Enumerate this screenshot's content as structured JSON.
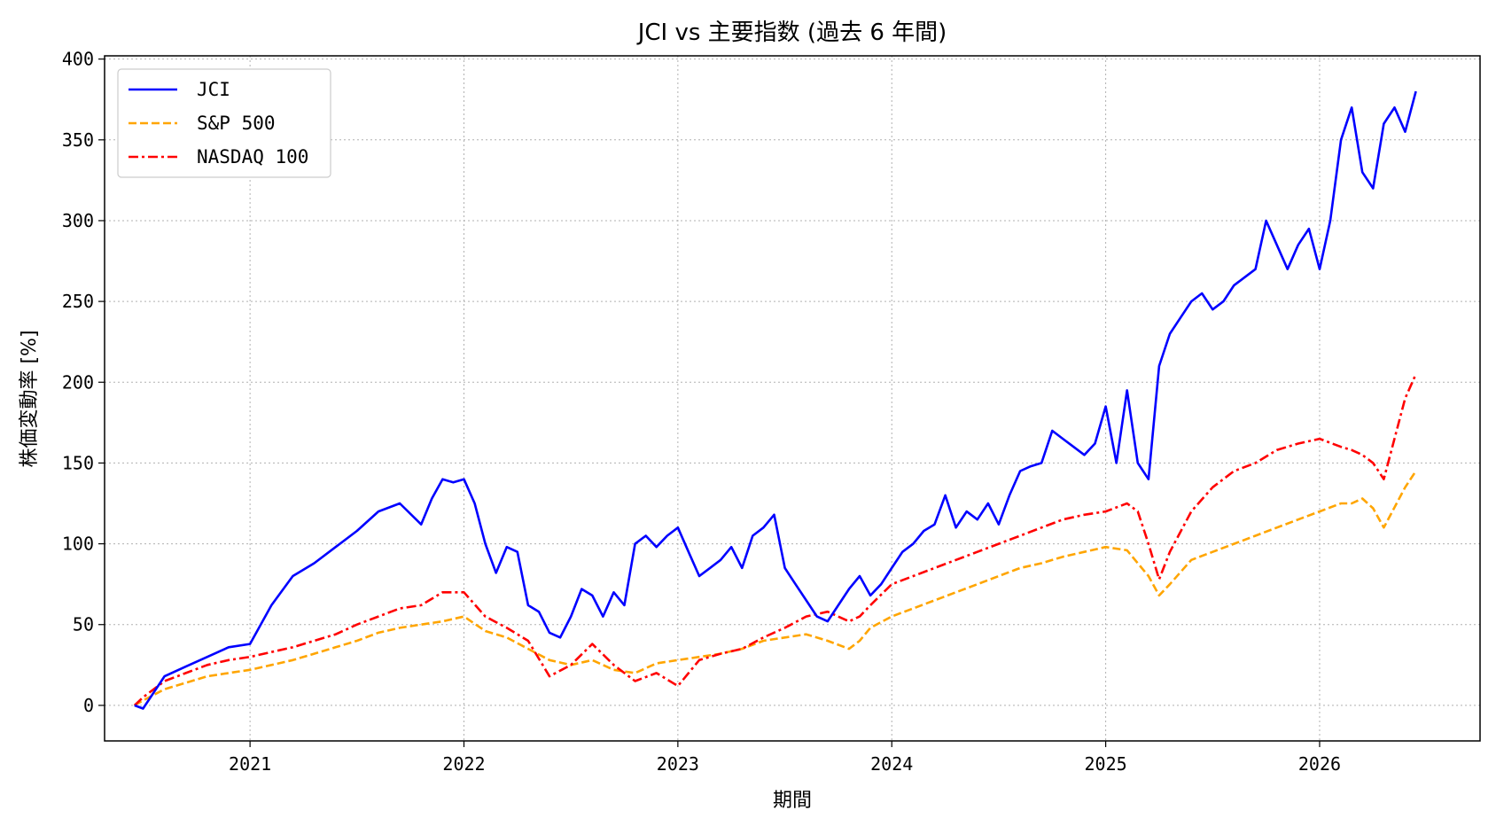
{
  "chart_data": {
    "type": "line",
    "title": "JCI vs 主要指数 (過去 6 年間)",
    "xlabel": "期間",
    "ylabel": "株価変動率 [%]",
    "xlim": [
      2020.32,
      2026.75
    ],
    "ylim": [
      -22,
      402
    ],
    "x_ticks": [
      2021,
      2022,
      2023,
      2024,
      2025,
      2026
    ],
    "x_tick_labels": [
      "2021",
      "2022",
      "2023",
      "2024",
      "2025",
      "2026"
    ],
    "y_ticks": [
      0,
      50,
      100,
      150,
      200,
      250,
      300,
      350,
      400
    ],
    "y_tick_labels": [
      "0",
      "50",
      "100",
      "150",
      "200",
      "250",
      "300",
      "350",
      "400"
    ],
    "grid": true,
    "legend_position": "top-left",
    "series": [
      {
        "name": "JCI",
        "color": "#0000ff",
        "style": "solid",
        "x": [
          2020.46,
          2020.5,
          2020.55,
          2020.6,
          2020.7,
          2020.8,
          2020.9,
          2021.0,
          2021.05,
          2021.1,
          2021.2,
          2021.3,
          2021.4,
          2021.5,
          2021.6,
          2021.7,
          2021.8,
          2021.85,
          2021.9,
          2021.95,
          2022.0,
          2022.05,
          2022.1,
          2022.15,
          2022.2,
          2022.25,
          2022.3,
          2022.35,
          2022.4,
          2022.45,
          2022.5,
          2022.55,
          2022.6,
          2022.65,
          2022.7,
          2022.75,
          2022.8,
          2022.85,
          2022.9,
          2022.95,
          2023.0,
          2023.05,
          2023.1,
          2023.15,
          2023.2,
          2023.25,
          2023.3,
          2023.35,
          2023.4,
          2023.45,
          2023.5,
          2023.55,
          2023.6,
          2023.65,
          2023.7,
          2023.75,
          2023.8,
          2023.85,
          2023.9,
          2023.95,
          2024.0,
          2024.05,
          2024.1,
          2024.15,
          2024.2,
          2024.25,
          2024.3,
          2024.35,
          2024.4,
          2024.45,
          2024.5,
          2024.55,
          2024.6,
          2024.65,
          2024.7,
          2024.75,
          2024.8,
          2024.85,
          2024.9,
          2024.95,
          2025.0,
          2025.05,
          2025.1,
          2025.15,
          2025.2,
          2025.25,
          2025.3,
          2025.35,
          2025.4,
          2025.45,
          2025.5,
          2025.55,
          2025.6,
          2025.65,
          2025.7,
          2025.75,
          2025.8,
          2025.85,
          2025.9,
          2025.95,
          2026.0,
          2026.05,
          2026.1,
          2026.15,
          2026.2,
          2026.25,
          2026.3,
          2026.35,
          2026.4,
          2026.45
        ],
        "values": [
          0,
          -2,
          8,
          18,
          24,
          30,
          36,
          38,
          50,
          62,
          80,
          88,
          98,
          108,
          120,
          125,
          112,
          128,
          140,
          138,
          140,
          125,
          100,
          82,
          98,
          95,
          62,
          58,
          45,
          42,
          55,
          72,
          68,
          55,
          70,
          62,
          100,
          105,
          98,
          105,
          110,
          95,
          80,
          85,
          90,
          98,
          85,
          105,
          110,
          118,
          85,
          75,
          65,
          55,
          52,
          62,
          72,
          80,
          68,
          75,
          85,
          95,
          100,
          108,
          112,
          130,
          110,
          120,
          115,
          125,
          112,
          130,
          145,
          148,
          150,
          170,
          165,
          160,
          155,
          162,
          185,
          150,
          195,
          150,
          140,
          210,
          230,
          240,
          250,
          255,
          245,
          250,
          260,
          265,
          270,
          300,
          285,
          270,
          285,
          295,
          270,
          300,
          350,
          370,
          330,
          320,
          360,
          370,
          355,
          380
        ]
      },
      {
        "name": "S&P 500",
        "color": "#ffa500",
        "style": "dashed",
        "x": [
          2020.46,
          2020.5,
          2020.6,
          2020.7,
          2020.8,
          2020.9,
          2021.0,
          2021.1,
          2021.2,
          2021.3,
          2021.4,
          2021.5,
          2021.6,
          2021.7,
          2021.8,
          2021.9,
          2022.0,
          2022.1,
          2022.2,
          2022.3,
          2022.4,
          2022.5,
          2022.6,
          2022.7,
          2022.8,
          2022.9,
          2023.0,
          2023.1,
          2023.2,
          2023.3,
          2023.4,
          2023.5,
          2023.6,
          2023.7,
          2023.8,
          2023.85,
          2023.9,
          2024.0,
          2024.1,
          2024.2,
          2024.3,
          2024.4,
          2024.5,
          2024.6,
          2024.7,
          2024.8,
          2024.9,
          2025.0,
          2025.1,
          2025.15,
          2025.2,
          2025.25,
          2025.3,
          2025.4,
          2025.5,
          2025.6,
          2025.7,
          2025.8,
          2025.9,
          2026.0,
          2026.1,
          2026.15,
          2026.2,
          2026.25,
          2026.3,
          2026.4,
          2026.45
        ],
        "values": [
          0,
          3,
          10,
          14,
          18,
          20,
          22,
          25,
          28,
          32,
          36,
          40,
          45,
          48,
          50,
          52,
          55,
          46,
          42,
          35,
          28,
          25,
          28,
          22,
          20,
          26,
          28,
          30,
          32,
          35,
          40,
          42,
          44,
          40,
          35,
          40,
          48,
          55,
          60,
          65,
          70,
          75,
          80,
          85,
          88,
          92,
          95,
          98,
          96,
          88,
          80,
          68,
          75,
          90,
          95,
          100,
          105,
          110,
          115,
          120,
          125,
          125,
          128,
          122,
          110,
          135,
          145
        ]
      },
      {
        "name": "NASDAQ 100",
        "color": "#ff0000",
        "style": "dashdot",
        "x": [
          2020.46,
          2020.5,
          2020.6,
          2020.7,
          2020.8,
          2020.9,
          2021.0,
          2021.1,
          2021.2,
          2021.3,
          2021.4,
          2021.5,
          2021.6,
          2021.7,
          2021.8,
          2021.9,
          2022.0,
          2022.1,
          2022.2,
          2022.3,
          2022.4,
          2022.5,
          2022.6,
          2022.7,
          2022.8,
          2022.9,
          2023.0,
          2023.1,
          2023.2,
          2023.3,
          2023.4,
          2023.5,
          2023.6,
          2023.7,
          2023.8,
          2023.85,
          2023.9,
          2024.0,
          2024.1,
          2024.2,
          2024.3,
          2024.4,
          2024.5,
          2024.6,
          2024.7,
          2024.8,
          2024.9,
          2025.0,
          2025.1,
          2025.15,
          2025.2,
          2025.25,
          2025.3,
          2025.4,
          2025.5,
          2025.6,
          2025.7,
          2025.8,
          2025.9,
          2026.0,
          2026.1,
          2026.15,
          2026.2,
          2026.25,
          2026.3,
          2026.4,
          2026.45
        ],
        "values": [
          0,
          5,
          15,
          20,
          25,
          28,
          30,
          33,
          36,
          40,
          44,
          50,
          55,
          60,
          62,
          70,
          70,
          55,
          48,
          40,
          18,
          25,
          38,
          25,
          15,
          20,
          12,
          28,
          32,
          35,
          42,
          48,
          55,
          58,
          52,
          55,
          62,
          75,
          80,
          85,
          90,
          95,
          100,
          105,
          110,
          115,
          118,
          120,
          125,
          120,
          100,
          78,
          95,
          120,
          135,
          145,
          150,
          158,
          162,
          165,
          160,
          158,
          155,
          150,
          140,
          190,
          205
        ]
      }
    ]
  }
}
